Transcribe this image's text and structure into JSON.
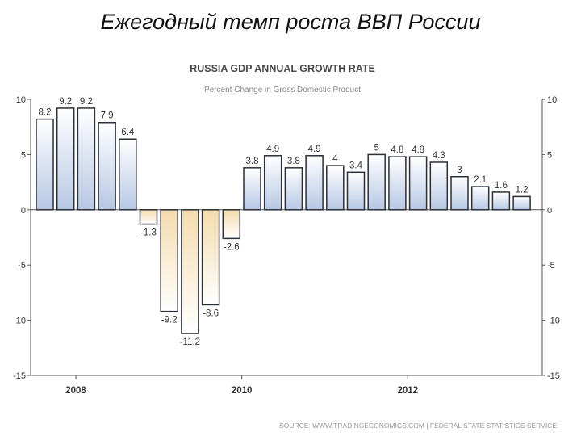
{
  "slide": {
    "title": "Ежегодный темп роста ВВП России"
  },
  "source_note": "SOURCE: WWW.TRADINGECONOMICS.COM | FEDERAL STATE STATISTICS SERVICE",
  "chart_data": {
    "type": "bar",
    "title": "RUSSIA GDP ANNUAL GROWTH RATE",
    "subtitle": "Percent Change in Gross Domestic Product",
    "xlabel": "",
    "ylabel": "",
    "ylim": [
      -15,
      10
    ],
    "yticks": [
      10,
      5,
      0,
      -5,
      -10,
      -15
    ],
    "y_tick_labels": [
      "10",
      "5",
      "0",
      "-5",
      "-10",
      "-15"
    ],
    "x_tick_labels": [
      "2008",
      "2010",
      "2012"
    ],
    "x_tick_after_bar_index": [
      1,
      9,
      17
    ],
    "values": [
      8.2,
      9.2,
      9.2,
      7.9,
      6.4,
      -1.3,
      -9.2,
      -11.2,
      -8.6,
      -2.6,
      3.8,
      4.9,
      3.8,
      4.9,
      4,
      3.4,
      5,
      4.8,
      4.8,
      4.3,
      3,
      2.1,
      1.6,
      1.2
    ],
    "labels": [
      "8.2",
      "9.2",
      "9.2",
      "7.9",
      "6.4",
      "-1.3",
      "-9.2",
      "-11.2",
      "-8.6",
      "-2.6",
      "3.8",
      "4.9",
      "3.8",
      "4.9",
      "4",
      "3.4",
      "5",
      "4.8",
      "4.8",
      "4.3",
      "3",
      "2.1",
      "1.6",
      "1.2"
    ],
    "grid": false,
    "colors": {
      "positive_fill": "#c5d3e9",
      "negative_fill": "#f4dfb4",
      "bar_stroke": "#2b2f38",
      "axis": "#555555",
      "text": "#333333",
      "title": "#4a4a4a",
      "subtitle": "#8a8a8a"
    }
  }
}
